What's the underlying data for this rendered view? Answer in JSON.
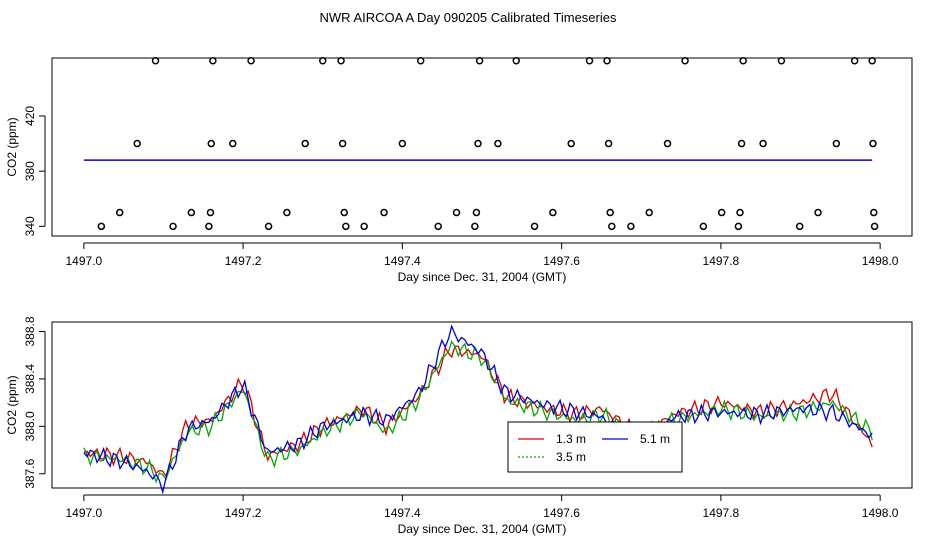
{
  "title": "NWR AIRCOA A  Day 090205  Calibrated Timeseries",
  "colors": {
    "red": "#dd0000",
    "green": "#00aa00",
    "blue": "#0000dd",
    "black": "#000000"
  },
  "chart_data": [
    {
      "type": "scatter",
      "xlabel": "Day since Dec. 31, 2004 (GMT)",
      "ylabel": "CO2 (ppm)",
      "xlim": [
        1496.96,
        1498.04
      ],
      "ylim": [
        333,
        462
      ],
      "xticks": [
        "1497.0",
        "1497.2",
        "1497.4",
        "1497.6",
        "1497.8",
        "1498.0"
      ],
      "yticks": [
        "340",
        "380",
        "420"
      ],
      "series": [
        {
          "color": "black",
          "marker": "circle",
          "points": [
            [
              1497.022,
              340
            ],
            [
              1497.045,
              350
            ],
            [
              1497.067,
              400
            ],
            [
              1497.09,
              460
            ],
            [
              1497.112,
              340
            ],
            [
              1497.135,
              350
            ],
            [
              1497.157,
              340
            ],
            [
              1497.159,
              350
            ],
            [
              1497.16,
              400
            ],
            [
              1497.162,
              460
            ],
            [
              1497.187,
              400
            ],
            [
              1497.21,
              460
            ],
            [
              1497.232,
              340
            ],
            [
              1497.255,
              350
            ],
            [
              1497.278,
              400
            ],
            [
              1497.3,
              460
            ],
            [
              1497.323,
              460
            ],
            [
              1497.325,
              400
            ],
            [
              1497.327,
              350
            ],
            [
              1497.329,
              340
            ],
            [
              1497.352,
              340
            ],
            [
              1497.377,
              350
            ],
            [
              1497.4,
              400
            ],
            [
              1497.423,
              460
            ],
            [
              1497.445,
              340
            ],
            [
              1497.468,
              350
            ],
            [
              1497.491,
              340
            ],
            [
              1497.493,
              350
            ],
            [
              1497.495,
              400
            ],
            [
              1497.497,
              460
            ],
            [
              1497.52,
              400
            ],
            [
              1497.543,
              460
            ],
            [
              1497.566,
              340
            ],
            [
              1497.589,
              350
            ],
            [
              1497.612,
              400
            ],
            [
              1497.635,
              460
            ],
            [
              1497.657,
              460
            ],
            [
              1497.659,
              400
            ],
            [
              1497.661,
              350
            ],
            [
              1497.663,
              340
            ],
            [
              1497.687,
              340
            ],
            [
              1497.71,
              350
            ],
            [
              1497.733,
              400
            ],
            [
              1497.755,
              460
            ],
            [
              1497.778,
              340
            ],
            [
              1497.801,
              350
            ],
            [
              1497.822,
              340
            ],
            [
              1497.824,
              350
            ],
            [
              1497.826,
              400
            ],
            [
              1497.828,
              460
            ],
            [
              1497.853,
              400
            ],
            [
              1497.876,
              460
            ],
            [
              1497.899,
              340
            ],
            [
              1497.922,
              350
            ],
            [
              1497.945,
              400
            ],
            [
              1497.968,
              460
            ],
            [
              1497.99,
              460
            ],
            [
              1497.991,
              400
            ],
            [
              1497.992,
              350
            ],
            [
              1497.993,
              340
            ]
          ]
        },
        {
          "color": "blue",
          "line_y": 388.0,
          "x_range": [
            1497.0,
            1497.99
          ]
        }
      ]
    },
    {
      "type": "line",
      "xlabel": "Day since Dec. 31, 2004 (GMT)",
      "ylabel": "CO2 (ppm)",
      "xlim": [
        1496.96,
        1498.04
      ],
      "ylim": [
        387.48,
        388.88
      ],
      "xticks": [
        "1497.0",
        "1497.2",
        "1497.4",
        "1497.6",
        "1497.8",
        "1498.0"
      ],
      "yticks": [
        "387.6",
        "388.0",
        "388.4",
        "388.8"
      ],
      "legend": {
        "placement": "bottom-center"
      },
      "series": [
        {
          "name": "1.3 m",
          "color": "red",
          "keys": [
            [
              1497.0,
              387.78
            ],
            [
              1497.05,
              387.74
            ],
            [
              1497.08,
              387.7
            ],
            [
              1497.1,
              387.58
            ],
            [
              1497.13,
              388.02
            ],
            [
              1497.16,
              388.05
            ],
            [
              1497.2,
              388.38
            ],
            [
              1497.23,
              387.75
            ],
            [
              1497.27,
              387.85
            ],
            [
              1497.3,
              388.0
            ],
            [
              1497.35,
              388.15
            ],
            [
              1497.38,
              388.0
            ],
            [
              1497.42,
              388.25
            ],
            [
              1497.46,
              388.65
            ],
            [
              1497.5,
              388.6
            ],
            [
              1497.53,
              388.25
            ],
            [
              1497.58,
              388.15
            ],
            [
              1497.62,
              388.1
            ],
            [
              1497.65,
              388.15
            ],
            [
              1497.7,
              387.92
            ],
            [
              1497.74,
              388.1
            ],
            [
              1497.8,
              388.2
            ],
            [
              1497.85,
              388.12
            ],
            [
              1497.9,
              388.2
            ],
            [
              1497.94,
              388.28
            ],
            [
              1497.99,
              387.85
            ]
          ]
        },
        {
          "name": "3.5 m",
          "color": "green",
          "keys": [
            [
              1497.0,
              387.75
            ],
            [
              1497.05,
              387.72
            ],
            [
              1497.08,
              387.65
            ],
            [
              1497.1,
              387.55
            ],
            [
              1497.13,
              387.95
            ],
            [
              1497.16,
              388.0
            ],
            [
              1497.2,
              388.32
            ],
            [
              1497.23,
              387.72
            ],
            [
              1497.27,
              387.8
            ],
            [
              1497.3,
              387.95
            ],
            [
              1497.35,
              388.12
            ],
            [
              1497.38,
              387.95
            ],
            [
              1497.42,
              388.22
            ],
            [
              1497.46,
              388.68
            ],
            [
              1497.5,
              388.58
            ],
            [
              1497.53,
              388.22
            ],
            [
              1497.58,
              388.12
            ],
            [
              1497.62,
              388.05
            ],
            [
              1497.65,
              388.1
            ],
            [
              1497.7,
              387.9
            ],
            [
              1497.74,
              388.05
            ],
            [
              1497.8,
              388.15
            ],
            [
              1497.85,
              388.08
            ],
            [
              1497.9,
              388.12
            ],
            [
              1497.94,
              388.2
            ],
            [
              1497.99,
              387.95
            ]
          ]
        },
        {
          "name": "5.1 m",
          "color": "blue",
          "keys": [
            [
              1497.0,
              387.78
            ],
            [
              1497.05,
              387.7
            ],
            [
              1497.08,
              387.62
            ],
            [
              1497.1,
              387.5
            ],
            [
              1497.13,
              387.98
            ],
            [
              1497.16,
              388.05
            ],
            [
              1497.2,
              388.35
            ],
            [
              1497.23,
              387.78
            ],
            [
              1497.27,
              387.85
            ],
            [
              1497.3,
              388.0
            ],
            [
              1497.35,
              388.1
            ],
            [
              1497.38,
              388.05
            ],
            [
              1497.42,
              388.28
            ],
            [
              1497.46,
              388.8
            ],
            [
              1497.5,
              388.62
            ],
            [
              1497.53,
              388.28
            ],
            [
              1497.58,
              388.18
            ],
            [
              1497.62,
              388.12
            ],
            [
              1497.65,
              388.08
            ],
            [
              1497.7,
              387.82
            ],
            [
              1497.74,
              388.08
            ],
            [
              1497.8,
              388.12
            ],
            [
              1497.85,
              388.1
            ],
            [
              1497.9,
              388.15
            ],
            [
              1497.94,
              388.12
            ],
            [
              1497.99,
              387.92
            ]
          ]
        }
      ]
    }
  ]
}
